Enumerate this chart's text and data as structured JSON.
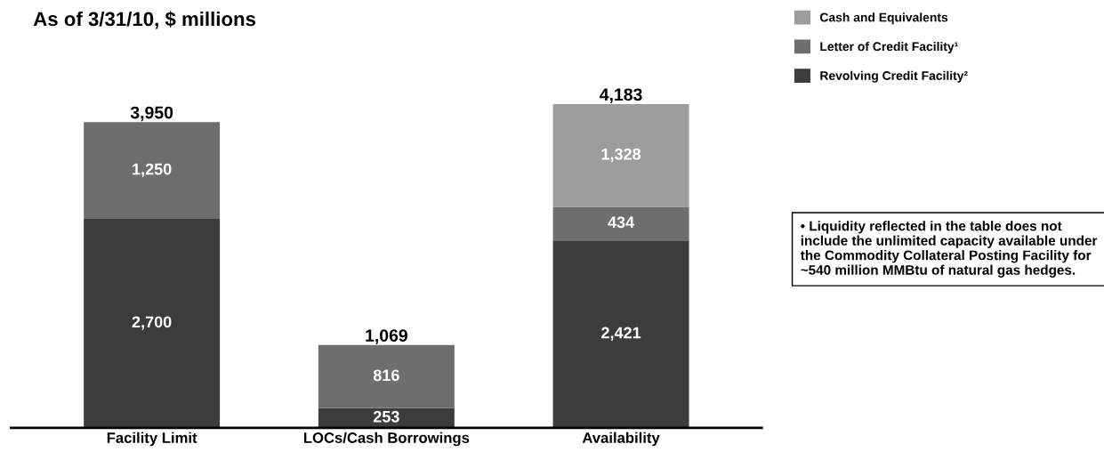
{
  "chart_data": {
    "type": "bar",
    "title": "As of 3/31/10, $ millions",
    "categories": [
      "Facility Limit",
      "LOCs/Cash Borrowings",
      "Availability"
    ],
    "stacked": true,
    "series": [
      {
        "name": "Revolving Credit Facility²",
        "color": "#3c3c3c",
        "values": [
          2700,
          253,
          2421
        ],
        "value_labels": [
          "2,700",
          "253",
          "2,421"
        ]
      },
      {
        "name": "Letter of Credit Facility¹",
        "color": "#6e6e6e",
        "values": [
          1250,
          816,
          434
        ],
        "value_labels": [
          "1,250",
          "816",
          "434"
        ]
      },
      {
        "name": "Cash and Equivalents",
        "color": "#9c9c9c",
        "values": [
          null,
          null,
          1328
        ],
        "value_labels": [
          null,
          null,
          "1,328"
        ]
      }
    ],
    "totals": [
      "3,950",
      "1,069",
      "4,183"
    ],
    "legend": "top right",
    "grid": false,
    "annotations": [
      "• Liquidity reflected in the table does not include the unlimited capacity available under the Commodity Collateral Posting Facility for ~540 million MMBtu of natural gas hedges."
    ]
  }
}
